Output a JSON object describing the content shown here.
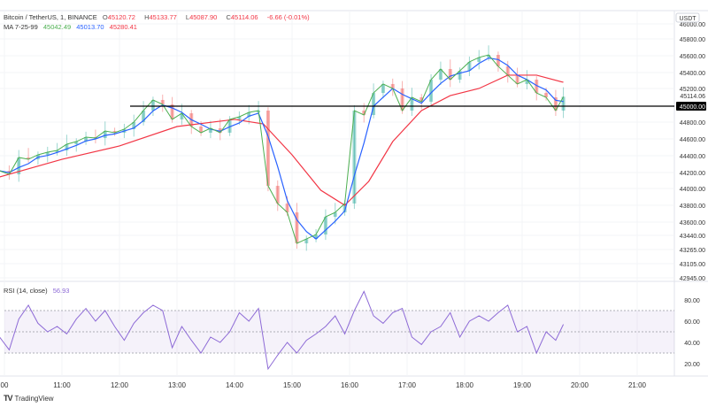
{
  "header": {
    "symbol": "Bitcoin / TetherUS, 1, BINANCE",
    "o_label": "O",
    "o": "45120.72",
    "h_label": "H",
    "h": "45133.77",
    "l_label": "L",
    "l": "45087.90",
    "c_label": "C",
    "c": "45114.06",
    "change": "-6.66 (-0.01%)",
    "ma_label": "MA 7-25-99",
    "ma7": "45042.49",
    "ma25": "45013.70",
    "ma99": "45280.41"
  },
  "rsi_legend": {
    "label": "RSI (14, close)",
    "value": "56.93"
  },
  "branding": {
    "name": "TradingView"
  },
  "colors": {
    "ma7": "#4caf50",
    "ma25": "#2962ff",
    "ma99": "#f23645",
    "up": "#26a69a",
    "down": "#ef5350",
    "rsi": "#8d6ad6"
  },
  "chart_data": [
    {
      "type": "line",
      "title": "Bitcoin / TetherUS, 1, BINANCE",
      "currency_label": "USDT",
      "y_ticks": [
        "46000.00",
        "45800.00",
        "45600.00",
        "45400.00",
        "45200.00",
        "44800.00",
        "44600.00",
        "44400.00",
        "44200.00",
        "44000.00",
        "43800.00",
        "43600.00",
        "43440.00",
        "43265.00",
        "43105.00",
        "42945.00"
      ],
      "last_price_label": "45114.06",
      "horizontal_line": {
        "value": 45000,
        "label": "45000.00"
      },
      "x_ticks": [
        "00",
        "11:00",
        "12:00",
        "13:00",
        "14:00",
        "15:00",
        "16:00",
        "17:00",
        "18:00",
        "19:00",
        "20:00",
        "21:00"
      ],
      "times": [
        "09:55",
        "10:05",
        "10:15",
        "10:25",
        "10:35",
        "10:45",
        "10:55",
        "11:05",
        "11:15",
        "11:25",
        "11:35",
        "11:45",
        "11:55",
        "12:05",
        "12:15",
        "12:25",
        "12:35",
        "12:45",
        "12:55",
        "13:05",
        "13:15",
        "13:25",
        "13:35",
        "13:45",
        "13:55",
        "14:05",
        "14:15",
        "14:25",
        "14:35",
        "14:45",
        "14:55",
        "15:05",
        "15:15",
        "15:25",
        "15:35",
        "15:45",
        "15:55",
        "16:05",
        "16:15",
        "16:25",
        "16:35",
        "16:45",
        "16:55",
        "17:05",
        "17:15",
        "17:25",
        "17:35",
        "17:45",
        "17:55",
        "18:05",
        "18:15",
        "18:25",
        "18:35",
        "18:45",
        "18:55",
        "19:05",
        "19:15",
        "19:25",
        "19:35",
        "19:43"
      ],
      "close": [
        44219,
        44176,
        44380,
        44358,
        44412,
        44444,
        44465,
        44540,
        44572,
        44626,
        44615,
        44700,
        44679,
        44722,
        44807,
        44947,
        45075,
        45021,
        44840,
        44914,
        44754,
        44679,
        44733,
        44679,
        44840,
        44872,
        44925,
        44947,
        44037,
        43823,
        43716,
        43342,
        43395,
        43449,
        43663,
        43716,
        43823,
        44947,
        44893,
        45160,
        45268,
        45214,
        44947,
        45107,
        45054,
        45321,
        45449,
        45321,
        45428,
        45535,
        45589,
        45620,
        45482,
        45375,
        45268,
        45321,
        45160,
        45107,
        44947,
        45114
      ],
      "ma99": {
        "times": [
          "09:55",
          "11:00",
          "12:00",
          "13:00",
          "14:00",
          "14:30",
          "15:00",
          "15:30",
          "15:55",
          "16:20",
          "16:45",
          "17:15",
          "17:45",
          "18:15",
          "18:45",
          "19:15",
          "19:43"
        ],
        "values": [
          44144,
          44358,
          44519,
          44754,
          44840,
          44786,
          44412,
          43984,
          43802,
          44091,
          44572,
          44947,
          45128,
          45214,
          45375,
          45375,
          45289
        ]
      },
      "series_names": [
        "MA 7",
        "MA 25",
        "MA 99"
      ]
    },
    {
      "type": "line",
      "title": "RSI (14, close)",
      "y_ticks": [
        "80.00",
        "60.00",
        "40.00",
        "20.00"
      ],
      "bands": [
        30,
        50,
        70
      ],
      "times": [
        "09:55",
        "10:05",
        "10:15",
        "10:25",
        "10:35",
        "10:45",
        "10:55",
        "11:05",
        "11:15",
        "11:25",
        "11:35",
        "11:45",
        "11:55",
        "12:05",
        "12:15",
        "12:25",
        "12:35",
        "12:45",
        "12:55",
        "13:05",
        "13:15",
        "13:25",
        "13:35",
        "13:45",
        "13:55",
        "14:05",
        "14:15",
        "14:25",
        "14:35",
        "14:45",
        "14:55",
        "15:05",
        "15:15",
        "15:25",
        "15:35",
        "15:45",
        "15:55",
        "16:05",
        "16:15",
        "16:25",
        "16:35",
        "16:45",
        "16:55",
        "17:05",
        "17:15",
        "17:25",
        "17:35",
        "17:45",
        "17:55",
        "18:05",
        "18:15",
        "18:25",
        "18:35",
        "18:45",
        "18:55",
        "19:05",
        "19:15",
        "19:25",
        "19:35",
        "19:43"
      ],
      "values": [
        45,
        33,
        62,
        75,
        58,
        50,
        55,
        48,
        62,
        72,
        60,
        70,
        55,
        42,
        58,
        68,
        75,
        70,
        35,
        55,
        42,
        30,
        45,
        40,
        50,
        68,
        60,
        72,
        15,
        28,
        40,
        30,
        42,
        48,
        55,
        65,
        48,
        70,
        88,
        65,
        58,
        68,
        72,
        45,
        38,
        50,
        55,
        68,
        45,
        60,
        65,
        60,
        68,
        75,
        50,
        55,
        30,
        50,
        42,
        57
      ]
    }
  ]
}
